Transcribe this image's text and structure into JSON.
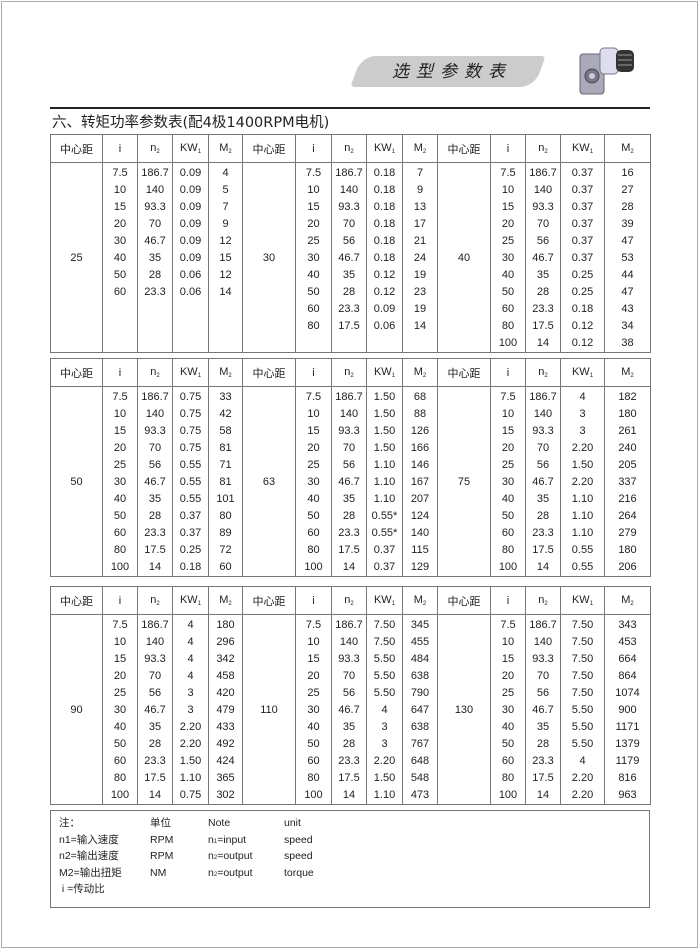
{
  "header": {
    "banner": "选型参数表",
    "title": "六、转矩功率参数表(配4极1400RPM电机)"
  },
  "columns": [
    {
      "label": "中心距",
      "sub": ""
    },
    {
      "label": "i",
      "sub": ""
    },
    {
      "label": "n",
      "sub": "2"
    },
    {
      "label": "KW",
      "sub": "1"
    },
    {
      "label": "M",
      "sub": "2"
    }
  ],
  "tables": [
    {
      "groups": [
        {
          "center": "25",
          "rows": [
            [
              "7.5",
              "186.7",
              "0.09",
              "4"
            ],
            [
              "10",
              "140",
              "0.09",
              "5"
            ],
            [
              "15",
              "93.3",
              "0.09",
              "7"
            ],
            [
              "20",
              "70",
              "0.09",
              "9"
            ],
            [
              "30",
              "46.7",
              "0.09",
              "12"
            ],
            [
              "40",
              "35",
              "0.09",
              "15"
            ],
            [
              "50",
              "28",
              "0.06",
              "12"
            ],
            [
              "60",
              "23.3",
              "0.06",
              "14"
            ]
          ]
        },
        {
          "center": "30",
          "rows": [
            [
              "7.5",
              "186.7",
              "0.18",
              "7"
            ],
            [
              "10",
              "140",
              "0.18",
              "9"
            ],
            [
              "15",
              "93.3",
              "0.18",
              "13"
            ],
            [
              "20",
              "70",
              "0.18",
              "17"
            ],
            [
              "25",
              "56",
              "0.18",
              "21"
            ],
            [
              "30",
              "46.7",
              "0.18",
              "24"
            ],
            [
              "40",
              "35",
              "0.12",
              "19"
            ],
            [
              "50",
              "28",
              "0.12",
              "23"
            ],
            [
              "60",
              "23.3",
              "0.09",
              "19"
            ],
            [
              "80",
              "17.5",
              "0.06",
              "14"
            ]
          ]
        },
        {
          "center": "40",
          "rows": [
            [
              "7.5",
              "186.7",
              "0.37",
              "16"
            ],
            [
              "10",
              "140",
              "0.37",
              "27"
            ],
            [
              "15",
              "93.3",
              "0.37",
              "28"
            ],
            [
              "20",
              "70",
              "0.37",
              "39"
            ],
            [
              "25",
              "56",
              "0.37",
              "47"
            ],
            [
              "30",
              "46.7",
              "0.37",
              "53"
            ],
            [
              "40",
              "35",
              "0.25",
              "44"
            ],
            [
              "50",
              "28",
              "0.25",
              "47"
            ],
            [
              "60",
              "23.3",
              "0.18",
              "43"
            ],
            [
              "80",
              "17.5",
              "0.12",
              "34"
            ],
            [
              "100",
              "14",
              "0.12",
              "38"
            ]
          ]
        }
      ]
    },
    {
      "groups": [
        {
          "center": "50",
          "rows": [
            [
              "7.5",
              "186.7",
              "0.75",
              "33"
            ],
            [
              "10",
              "140",
              "0.75",
              "42"
            ],
            [
              "15",
              "93.3",
              "0.75",
              "58"
            ],
            [
              "20",
              "70",
              "0.75",
              "81"
            ],
            [
              "25",
              "56",
              "0.55",
              "71"
            ],
            [
              "30",
              "46.7",
              "0.55",
              "81"
            ],
            [
              "40",
              "35",
              "0.55",
              "101"
            ],
            [
              "50",
              "28",
              "0.37",
              "80"
            ],
            [
              "60",
              "23.3",
              "0.37",
              "89"
            ],
            [
              "80",
              "17.5",
              "0.25",
              "72"
            ],
            [
              "100",
              "14",
              "0.18",
              "60"
            ]
          ]
        },
        {
          "center": "63",
          "rows": [
            [
              "7.5",
              "186.7",
              "1.50",
              "68"
            ],
            [
              "10",
              "140",
              "1.50",
              "88"
            ],
            [
              "15",
              "93.3",
              "1.50",
              "126"
            ],
            [
              "20",
              "70",
              "1.50",
              "166"
            ],
            [
              "25",
              "56",
              "1.10",
              "146"
            ],
            [
              "30",
              "46.7",
              "1.10",
              "167"
            ],
            [
              "40",
              "35",
              "1.10",
              "207"
            ],
            [
              "50",
              "28",
              "0.55*",
              "124"
            ],
            [
              "60",
              "23.3",
              "0.55*",
              "140"
            ],
            [
              "80",
              "17.5",
              "0.37",
              "115"
            ],
            [
              "100",
              "14",
              "0.37",
              "129"
            ]
          ]
        },
        {
          "center": "75",
          "rows": [
            [
              "7.5",
              "186.7",
              "4",
              "182"
            ],
            [
              "10",
              "140",
              "3",
              "180"
            ],
            [
              "15",
              "93.3",
              "3",
              "261"
            ],
            [
              "20",
              "70",
              "2.20",
              "240"
            ],
            [
              "25",
              "56",
              "1.50",
              "205"
            ],
            [
              "30",
              "46.7",
              "2.20",
              "337"
            ],
            [
              "40",
              "35",
              "1.10",
              "216"
            ],
            [
              "50",
              "28",
              "1.10",
              "264"
            ],
            [
              "60",
              "23.3",
              "1.10",
              "279"
            ],
            [
              "80",
              "17.5",
              "0.55",
              "180"
            ],
            [
              "100",
              "14",
              "0.55",
              "206"
            ]
          ]
        }
      ]
    },
    {
      "groups": [
        {
          "center": "90",
          "rows": [
            [
              "7.5",
              "186.7",
              "4",
              "180"
            ],
            [
              "10",
              "140",
              "4",
              "296"
            ],
            [
              "15",
              "93.3",
              "4",
              "342"
            ],
            [
              "20",
              "70",
              "4",
              "458"
            ],
            [
              "25",
              "56",
              "3",
              "420"
            ],
            [
              "30",
              "46.7",
              "3",
              "479"
            ],
            [
              "40",
              "35",
              "2.20",
              "433"
            ],
            [
              "50",
              "28",
              "2.20",
              "492"
            ],
            [
              "60",
              "23.3",
              "1.50",
              "424"
            ],
            [
              "80",
              "17.5",
              "1.10",
              "365"
            ],
            [
              "100",
              "14",
              "0.75",
              "302"
            ]
          ]
        },
        {
          "center": "110",
          "rows": [
            [
              "7.5",
              "186.7",
              "7.50",
              "345"
            ],
            [
              "10",
              "140",
              "7.50",
              "455"
            ],
            [
              "15",
              "93.3",
              "5.50",
              "484"
            ],
            [
              "20",
              "70",
              "5.50",
              "638"
            ],
            [
              "25",
              "56",
              "5.50",
              "790"
            ],
            [
              "30",
              "46.7",
              "4",
              "647"
            ],
            [
              "40",
              "35",
              "3",
              "638"
            ],
            [
              "50",
              "28",
              "3",
              "767"
            ],
            [
              "60",
              "23.3",
              "2.20",
              "648"
            ],
            [
              "80",
              "17.5",
              "1.50",
              "548"
            ],
            [
              "100",
              "14",
              "1.10",
              "473"
            ]
          ]
        },
        {
          "center": "130",
          "rows": [
            [
              "7.5",
              "186.7",
              "7.50",
              "343"
            ],
            [
              "10",
              "140",
              "7.50",
              "453"
            ],
            [
              "15",
              "93.3",
              "7.50",
              "664"
            ],
            [
              "20",
              "70",
              "7.50",
              "864"
            ],
            [
              "25",
              "56",
              "7.50",
              "1074"
            ],
            [
              "30",
              "46.7",
              "5.50",
              "900"
            ],
            [
              "40",
              "35",
              "5.50",
              "1171"
            ],
            [
              "50",
              "28",
              "5.50",
              "1379"
            ],
            [
              "60",
              "23.3",
              "4",
              "1179"
            ],
            [
              "80",
              "17.5",
              "2.20",
              "816"
            ],
            [
              "100",
              "14",
              "2.20",
              "963"
            ]
          ]
        }
      ]
    }
  ],
  "notes": {
    "rows": [
      {
        "c1": "注：",
        "c2": "单位",
        "c3": "Note",
        "c3sub": "",
        "c3rest": "",
        "c4": "unit"
      },
      {
        "c1": "n1=输入速度",
        "c2": "RPM",
        "c3": "n",
        "c3sub": "1",
        "c3rest": "=input",
        "c4": "speed"
      },
      {
        "c1": "n2=输出速度",
        "c2": "RPM",
        "c3": "n",
        "c3sub": "2",
        "c3rest": "=output",
        "c4": "speed"
      },
      {
        "c1": "M2=输出扭矩",
        "c2": "NM",
        "c3": "n",
        "c3sub": "2",
        "c3rest": "=output",
        "c4": "torque"
      },
      {
        "c1": " i =传动比",
        "c2": "",
        "c3": "",
        "c3sub": "",
        "c3rest": "",
        "c4": ""
      }
    ]
  }
}
